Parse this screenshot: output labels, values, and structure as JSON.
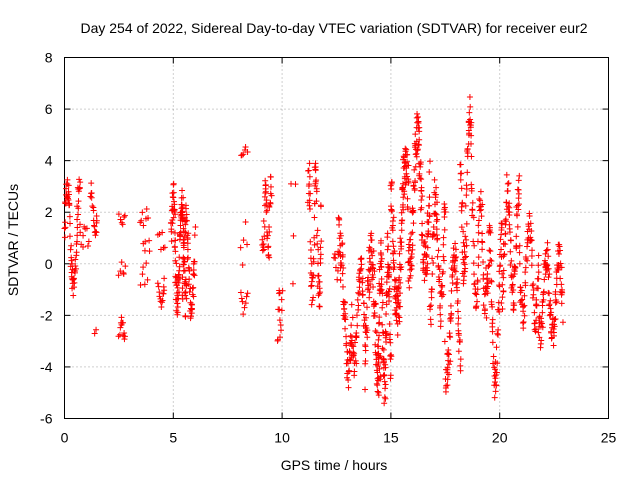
{
  "chart_data": {
    "type": "scatter",
    "title": "Day 254 of 2022, Sidereal Day-to-day VTEC variation (SDTVAR) for receiver eur2",
    "xlabel": "GPS time / hours",
    "ylabel": "SDTVAR / TECUs",
    "xlim": [
      0,
      25
    ],
    "ylim": [
      -6,
      8
    ],
    "xticks": [
      "0",
      "5",
      "10",
      "15",
      "20",
      "25"
    ],
    "yticks": [
      "-6",
      "-4",
      "-2",
      "0",
      "2",
      "4",
      "6",
      "8"
    ],
    "grid": true,
    "marker": "+",
    "series_color": "#ff0000",
    "clusters": [
      {
        "x0": 0.0,
        "x1": 0.7,
        "center": 1.0,
        "amp": 2.0,
        "noise": 0.5,
        "n": 70
      },
      {
        "x0": 0.7,
        "x1": 1.1,
        "center": 1.1,
        "amp": 0.3,
        "noise": 0.2,
        "n": 10
      },
      {
        "x0": 1.2,
        "x1": 1.5,
        "center": 2.0,
        "amp": 0.9,
        "noise": 0.3,
        "n": 18
      },
      {
        "x0": 1.4,
        "x1": 1.45,
        "center": -2.6,
        "amp": 0.1,
        "noise": 0.1,
        "n": 2
      },
      {
        "x0": 2.5,
        "x1": 2.8,
        "center": 1.7,
        "amp": 0.2,
        "noise": 0.1,
        "n": 6
      },
      {
        "x0": 2.5,
        "x1": 2.8,
        "center": -0.2,
        "amp": 0.2,
        "noise": 0.1,
        "n": 6
      },
      {
        "x0": 2.5,
        "x1": 2.8,
        "center": -2.5,
        "amp": 0.4,
        "noise": 0.2,
        "n": 12
      },
      {
        "x0": 3.5,
        "x1": 3.9,
        "center": 1.3,
        "amp": 0.6,
        "noise": 0.3,
        "n": 12
      },
      {
        "x0": 3.5,
        "x1": 3.8,
        "center": -0.4,
        "amp": 0.3,
        "noise": 0.2,
        "n": 6
      },
      {
        "x0": 4.3,
        "x1": 4.6,
        "center": 0.8,
        "amp": 0.4,
        "noise": 0.2,
        "n": 6
      },
      {
        "x0": 4.3,
        "x1": 4.6,
        "center": -1.1,
        "amp": 0.4,
        "noise": 0.2,
        "n": 14
      },
      {
        "x0": 4.9,
        "x1": 5.6,
        "center": 0.5,
        "amp": 2.0,
        "noise": 0.7,
        "n": 110
      },
      {
        "x0": 5.4,
        "x1": 6.0,
        "center": 0.0,
        "amp": 1.8,
        "noise": 0.6,
        "n": 60
      },
      {
        "x0": 8.1,
        "x1": 8.4,
        "center": 4.3,
        "amp": 0.2,
        "noise": 0.1,
        "n": 6
      },
      {
        "x0": 8.1,
        "x1": 8.4,
        "center": 0.8,
        "amp": 0.5,
        "noise": 0.4,
        "n": 5
      },
      {
        "x0": 8.1,
        "x1": 8.4,
        "center": -1.4,
        "amp": 0.4,
        "noise": 0.2,
        "n": 8
      },
      {
        "x0": 9.1,
        "x1": 9.5,
        "center": 1.8,
        "amp": 1.4,
        "noise": 0.5,
        "n": 40
      },
      {
        "x0": 9.8,
        "x1": 10.0,
        "center": -2.0,
        "amp": 1.0,
        "noise": 0.5,
        "n": 14
      },
      {
        "x0": 10.4,
        "x1": 10.6,
        "center": 3.1,
        "amp": 0.1,
        "noise": 0.1,
        "n": 2
      },
      {
        "x0": 10.4,
        "x1": 10.6,
        "center": 1.0,
        "amp": 0.1,
        "noise": 0.1,
        "n": 1
      },
      {
        "x0": 10.4,
        "x1": 10.6,
        "center": -0.8,
        "amp": 0.1,
        "noise": 0.1,
        "n": 1
      },
      {
        "x0": 11.2,
        "x1": 11.8,
        "center": 1.0,
        "amp": 2.4,
        "noise": 0.8,
        "n": 70
      },
      {
        "x0": 12.4,
        "x1": 12.7,
        "center": 0.0,
        "amp": 0.5,
        "noise": 0.3,
        "n": 10
      },
      {
        "x0": 12.6,
        "x1": 13.2,
        "center": -1.5,
        "amp": 2.5,
        "noise": 0.9,
        "n": 60
      },
      {
        "x0": 13.2,
        "x1": 13.8,
        "center": -2.0,
        "amp": 1.8,
        "noise": 0.7,
        "n": 50
      },
      {
        "x0": 13.8,
        "x1": 14.5,
        "center": -2.0,
        "amp": 2.5,
        "noise": 0.9,
        "n": 80
      },
      {
        "x0": 14.4,
        "x1": 15.0,
        "center": -2.3,
        "amp": 2.5,
        "noise": 1.0,
        "n": 100
      },
      {
        "x0": 15.0,
        "x1": 15.8,
        "center": 1.0,
        "amp": 3.0,
        "noise": 1.1,
        "n": 120
      },
      {
        "x0": 15.8,
        "x1": 16.8,
        "center": 2.5,
        "amp": 2.5,
        "noise": 1.0,
        "n": 120
      },
      {
        "x0": 16.8,
        "x1": 17.5,
        "center": 0.5,
        "amp": 2.2,
        "noise": 0.8,
        "n": 70
      },
      {
        "x0": 17.5,
        "x1": 18.2,
        "center": -2.0,
        "amp": 2.3,
        "noise": 0.8,
        "n": 70
      },
      {
        "x0": 18.2,
        "x1": 18.7,
        "center": 2.8,
        "amp": 3.0,
        "noise": 0.8,
        "n": 60
      },
      {
        "x0": 18.7,
        "x1": 19.4,
        "center": 0.5,
        "amp": 2.0,
        "noise": 0.6,
        "n": 60
      },
      {
        "x0": 19.4,
        "x1": 20.1,
        "center": -1.8,
        "amp": 2.6,
        "noise": 0.9,
        "n": 70
      },
      {
        "x0": 20.1,
        "x1": 20.9,
        "center": 0.8,
        "amp": 2.0,
        "noise": 0.7,
        "n": 80
      },
      {
        "x0": 20.9,
        "x1": 21.8,
        "center": -0.3,
        "amp": 1.8,
        "noise": 0.6,
        "n": 70
      },
      {
        "x0": 21.8,
        "x1": 22.9,
        "center": -1.2,
        "amp": 1.5,
        "noise": 0.6,
        "n": 100
      }
    ]
  }
}
